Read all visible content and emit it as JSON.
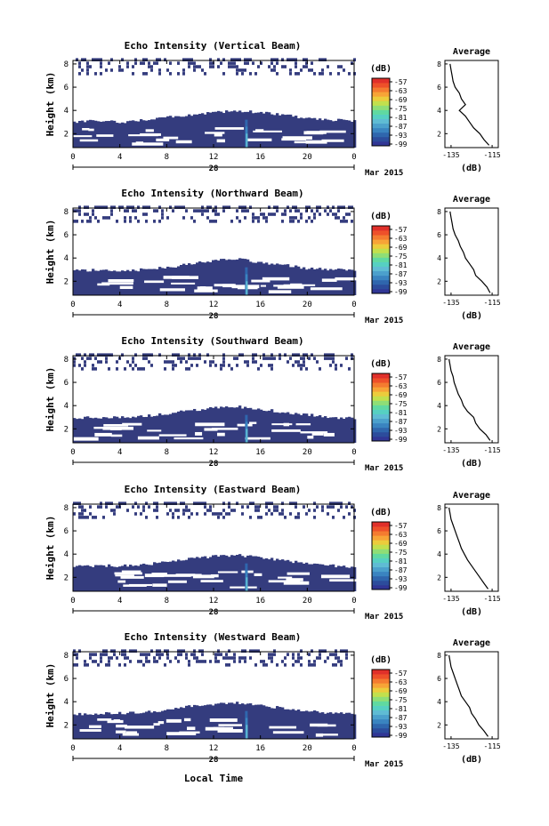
{
  "colorbar": {
    "unit": "(dB)",
    "tick_labels": [
      "-57",
      "-63",
      "-69",
      "-75",
      "-81",
      "-87",
      "-93",
      "-99"
    ],
    "colors": [
      "#313695",
      "#2c4c9c",
      "#2f66ad",
      "#3a84c0",
      "#4ba0cc",
      "#5fbcd4",
      "#56d0c2",
      "#60d9a1",
      "#8fde76",
      "#c2e04d",
      "#eccc3c",
      "#f7a437",
      "#f47b30",
      "#ee502a",
      "#e0302a"
    ]
  },
  "month_label": "Mar 2015",
  "shared_xlabel": "Local Time",
  "date_label": "28",
  "chart_data": [
    {
      "type": "heatmap",
      "title": "Echo Intensity (Vertical Beam)",
      "ylabel": "Height (km)",
      "x_ticks": [
        "0",
        "4",
        "8",
        "12",
        "16",
        "20",
        "0"
      ],
      "y_ticks": [
        "2",
        "4",
        "6",
        "8"
      ],
      "xlim": [
        0,
        24
      ],
      "ylim": [
        0.8,
        8.3
      ],
      "background_color": "#343c7e",
      "low_layer_top_km": [
        3.0,
        3.1,
        3.0,
        3.2,
        3.4,
        3.6,
        3.8,
        4.0,
        3.8,
        3.6,
        3.3,
        3.2,
        3.1
      ],
      "peak_local_time_h": 14.8,
      "average_profile": {
        "title": "Average",
        "xlabel": "(dB)",
        "x_ticks": [
          "-135",
          "-115"
        ],
        "y_ticks": [
          "2",
          "4",
          "6",
          "8"
        ],
        "xlim": [
          -138,
          -112
        ],
        "ylim": [
          0.8,
          8.3
        ],
        "height_km": [
          1.0,
          1.5,
          2.0,
          2.5,
          3.0,
          3.5,
          4.0,
          4.5,
          5.0,
          5.5,
          6.0,
          6.5,
          7.0,
          7.5,
          8.0
        ],
        "intensity_db": [
          -116.5,
          -119,
          -121,
          -124,
          -126,
          -128,
          -131,
          -128,
          -130,
          -131,
          -133,
          -134,
          -134.5,
          -135,
          -135.5
        ]
      }
    },
    {
      "type": "heatmap",
      "title": "Echo Intensity (Northward Beam)",
      "ylabel": "Height (km)",
      "x_ticks": [
        "0",
        "4",
        "8",
        "12",
        "16",
        "20",
        "0"
      ],
      "y_ticks": [
        "2",
        "4",
        "6",
        "8"
      ],
      "xlim": [
        0,
        24
      ],
      "ylim": [
        0.8,
        8.3
      ],
      "background_color": "#343c7e",
      "low_layer_top_km": [
        2.9,
        3.0,
        2.9,
        3.0,
        3.2,
        3.5,
        3.8,
        3.9,
        3.6,
        3.4,
        3.1,
        3.0,
        2.9
      ],
      "peak_local_time_h": 14.8,
      "average_profile": {
        "title": "Average",
        "xlabel": "(dB)",
        "x_ticks": [
          "-135",
          "-115"
        ],
        "y_ticks": [
          "2",
          "4",
          "6",
          "8"
        ],
        "xlim": [
          -138,
          -112
        ],
        "ylim": [
          0.8,
          8.3
        ],
        "height_km": [
          1.0,
          1.5,
          2.0,
          2.5,
          3.0,
          3.5,
          4.0,
          4.5,
          5.0,
          5.5,
          6.0,
          6.5,
          7.0,
          7.5,
          8.0
        ],
        "intensity_db": [
          -116,
          -117.5,
          -120,
          -123,
          -124,
          -126,
          -128,
          -129,
          -130.5,
          -131.5,
          -133,
          -134,
          -134.5,
          -135,
          -135.5
        ]
      }
    },
    {
      "type": "heatmap",
      "title": "Echo Intensity (Southward Beam)",
      "ylabel": "Height (km)",
      "x_ticks": [
        "0",
        "4",
        "8",
        "12",
        "16",
        "20",
        "0"
      ],
      "y_ticks": [
        "2",
        "4",
        "6",
        "8"
      ],
      "xlim": [
        0,
        24
      ],
      "ylim": [
        0.8,
        8.3
      ],
      "background_color": "#343c7e",
      "low_layer_top_km": [
        2.9,
        3.0,
        3.0,
        3.1,
        3.3,
        3.6,
        3.8,
        3.9,
        3.7,
        3.4,
        3.2,
        3.0,
        2.9
      ],
      "peak_local_time_h": 14.8,
      "average_profile": {
        "title": "Average",
        "xlabel": "(dB)",
        "x_ticks": [
          "-135",
          "-115"
        ],
        "y_ticks": [
          "2",
          "4",
          "6",
          "8"
        ],
        "xlim": [
          -138,
          -112
        ],
        "ylim": [
          0.8,
          8.3
        ],
        "height_km": [
          1.0,
          1.5,
          2.0,
          2.5,
          3.0,
          3.5,
          4.0,
          4.5,
          5.0,
          5.5,
          6.0,
          6.5,
          7.0,
          7.5,
          8.0
        ],
        "intensity_db": [
          -116,
          -118,
          -121,
          -123,
          -124,
          -127,
          -129,
          -130,
          -131.5,
          -132.5,
          -133.5,
          -134,
          -135,
          -135.5,
          -136
        ]
      }
    },
    {
      "type": "heatmap",
      "title": "Echo Intensity (Eastward Beam)",
      "ylabel": "Height (km)",
      "x_ticks": [
        "0",
        "4",
        "8",
        "12",
        "16",
        "20",
        "0"
      ],
      "y_ticks": [
        "2",
        "4",
        "6",
        "8"
      ],
      "xlim": [
        0,
        24
      ],
      "ylim": [
        0.8,
        8.3
      ],
      "background_color": "#343c7e",
      "low_layer_top_km": [
        2.9,
        3.0,
        3.0,
        3.1,
        3.3,
        3.6,
        3.8,
        3.9,
        3.7,
        3.4,
        3.2,
        3.0,
        2.9
      ],
      "peak_local_time_h": 14.8,
      "average_profile": {
        "title": "Average",
        "xlabel": "(dB)",
        "x_ticks": [
          "-135",
          "-115"
        ],
        "y_ticks": [
          "2",
          "4",
          "6",
          "8"
        ],
        "xlim": [
          -138,
          -112
        ],
        "ylim": [
          0.8,
          8.3
        ],
        "height_km": [
          1.0,
          1.5,
          2.0,
          2.5,
          3.0,
          3.5,
          4.0,
          4.5,
          5.0,
          5.5,
          6.0,
          6.5,
          7.0,
          7.5,
          8.0
        ],
        "intensity_db": [
          -117,
          -119,
          -121,
          -123,
          -125,
          -127,
          -128.5,
          -130,
          -131,
          -132,
          -133,
          -134,
          -135,
          -135.5,
          -136
        ]
      }
    },
    {
      "type": "heatmap",
      "title": "Echo Intensity (Westward Beam)",
      "ylabel": "Height (km)",
      "x_ticks": [
        "0",
        "4",
        "8",
        "12",
        "16",
        "20",
        "0"
      ],
      "y_ticks": [
        "2",
        "4",
        "6",
        "8"
      ],
      "xlim": [
        0,
        24
      ],
      "ylim": [
        0.8,
        8.3
      ],
      "background_color": "#343c7e",
      "low_layer_top_km": [
        2.9,
        3.0,
        3.0,
        3.1,
        3.3,
        3.6,
        3.8,
        3.9,
        3.7,
        3.4,
        3.2,
        3.0,
        2.9
      ],
      "peak_local_time_h": 14.8,
      "average_profile": {
        "title": "Average",
        "xlabel": "(dB)",
        "x_ticks": [
          "-135",
          "-115"
        ],
        "y_ticks": [
          "2",
          "4",
          "6",
          "8"
        ],
        "xlim": [
          -138,
          -112
        ],
        "ylim": [
          0.8,
          8.3
        ],
        "height_km": [
          1.0,
          1.5,
          2.0,
          2.5,
          3.0,
          3.5,
          4.0,
          4.5,
          5.0,
          5.5,
          6.0,
          6.5,
          7.0,
          7.5,
          8.0
        ],
        "intensity_db": [
          -117,
          -119,
          -121.5,
          -123,
          -125,
          -126,
          -128,
          -130,
          -131,
          -132,
          -133,
          -134,
          -135,
          -135.5,
          -136
        ]
      }
    }
  ]
}
